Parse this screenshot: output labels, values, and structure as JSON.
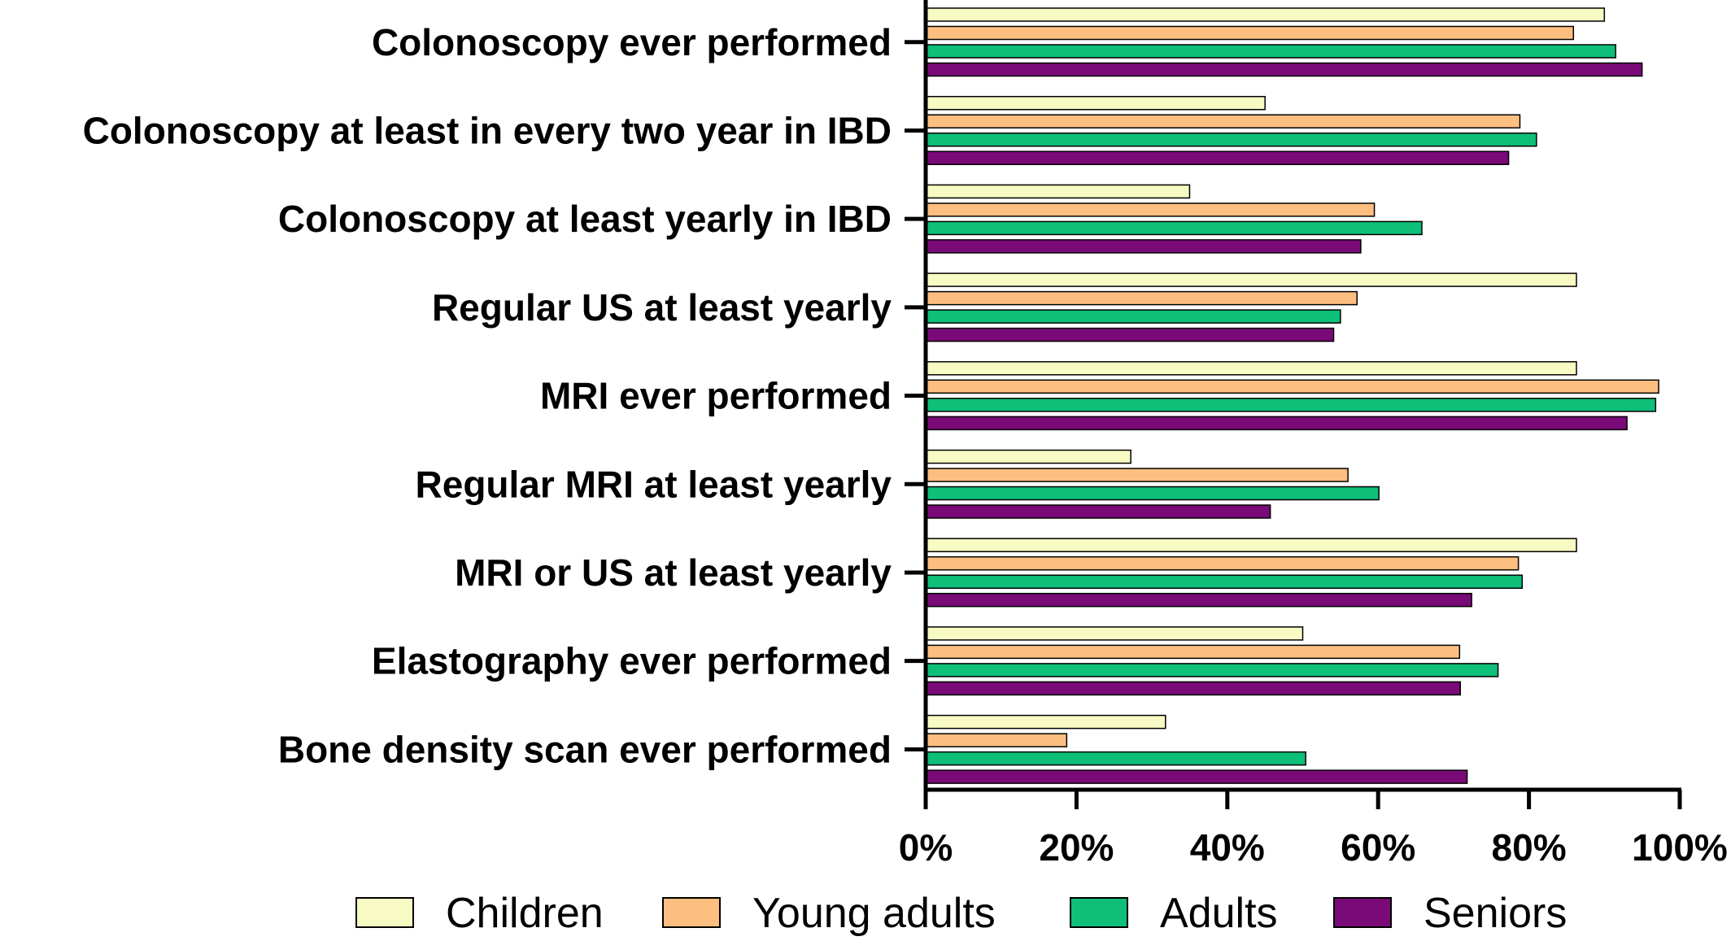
{
  "chart_data": {
    "type": "bar",
    "orientation": "horizontal",
    "categories": [
      "Colonoscopy ever performed",
      "Colonoscopy at least in every two year  in IBD",
      "Colonoscopy at least yearly in IBD",
      "Regular US at least yearly",
      "MRI ever performed",
      "Regular MRI at least yearly",
      "MRI or US at least yearly",
      "Elastography ever performed",
      "Bone density scan ever performed"
    ],
    "series": [
      {
        "name": "Children",
        "color": "#f7fbc3",
        "values": [
          90,
          45,
          35,
          86.3,
          86.3,
          27.2,
          86.3,
          50,
          31.8
        ]
      },
      {
        "name": "Young adults",
        "color": "#fdbf80",
        "values": [
          85.9,
          78.8,
          59.5,
          57.2,
          97.2,
          56,
          78.6,
          70.8,
          18.7
        ]
      },
      {
        "name": "Adults",
        "color": "#0ebf7a",
        "values": [
          91.5,
          81,
          65.8,
          55,
          96.8,
          60.1,
          79.1,
          75.9,
          50.4
        ]
      },
      {
        "name": "Seniors",
        "color": "#7a0a78",
        "values": [
          95,
          77.3,
          57.7,
          54.1,
          93,
          45.7,
          72.4,
          70.9,
          71.8
        ]
      }
    ],
    "xlim": [
      0,
      100
    ],
    "x_ticks": [
      "0%",
      "20%",
      "40%",
      "60%",
      "80%",
      "100%"
    ],
    "x_tick_values": [
      0,
      20,
      40,
      60,
      80,
      100
    ],
    "legend_position": "bottom",
    "grid": false,
    "title": "",
    "xlabel": "",
    "ylabel": ""
  }
}
